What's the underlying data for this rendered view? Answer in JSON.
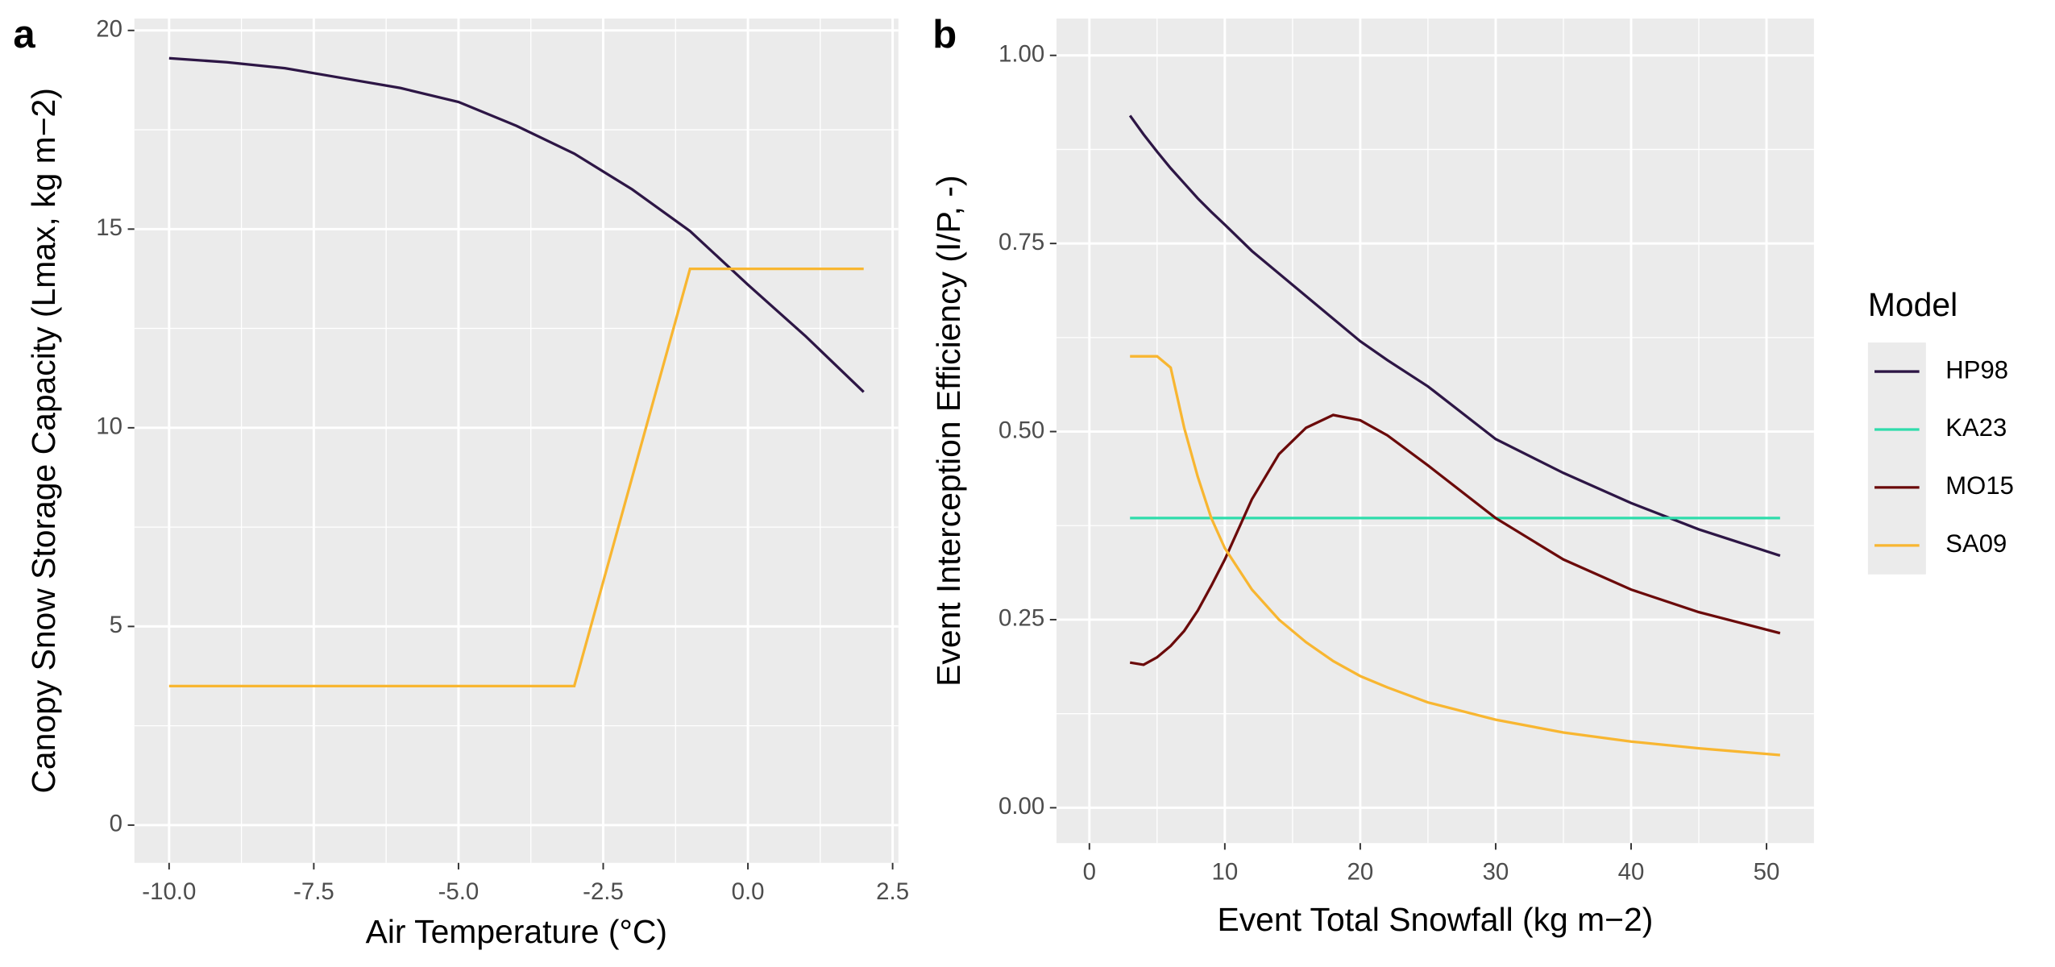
{
  "chart_data": [
    {
      "type": "line",
      "panel_label": "a",
      "x_label": "Air Temperature (°C)",
      "y_label": "Canopy Snow Storage Capacity (Lmax, kg m−2)",
      "x": [
        -10,
        -9,
        -8,
        -7,
        -6,
        -5,
        -4,
        -3,
        -2,
        -1,
        0,
        1,
        2
      ],
      "series": [
        {
          "color": "#2d1645",
          "values": [
            19.3,
            19.2,
            19.05,
            18.8,
            18.55,
            18.2,
            17.6,
            16.9,
            16.0,
            14.95,
            13.6,
            12.3,
            10.9
          ]
        },
        {
          "color": "#f8b631",
          "values": [
            3.5,
            3.5,
            3.5,
            3.5,
            3.5,
            3.5,
            3.5,
            3.5,
            8.75,
            14,
            14,
            14,
            14
          ]
        }
      ],
      "xlim": [
        -10.6,
        2.6
      ],
      "ylim": [
        -0.95,
        20.3
      ],
      "xticks": [
        {
          "value": -10,
          "label": "-10.0"
        },
        {
          "value": -7.5,
          "label": "-7.5"
        },
        {
          "value": -5,
          "label": "-5.0"
        },
        {
          "value": -2.5,
          "label": "-2.5"
        },
        {
          "value": 0,
          "label": "0.0"
        },
        2.5
      ],
      "yticks": [
        0,
        5,
        10,
        15,
        20
      ],
      "grid": true
    },
    {
      "type": "line",
      "panel_label": "b",
      "x_label": "Event Total Snowfall (kg m−2)",
      "y_label": "Event Interception Efficiency (I/P, -)",
      "legend_title": "Model",
      "x": [
        3,
        4,
        5,
        6,
        7,
        8,
        9,
        10,
        12,
        14,
        16,
        18,
        20,
        22,
        25,
        30,
        35,
        40,
        45,
        51
      ],
      "series": [
        {
          "name": "HP98",
          "color": "#2d1645",
          "values": [
            0.92,
            0.895,
            0.872,
            0.85,
            0.83,
            0.81,
            0.792,
            0.775,
            0.74,
            0.71,
            0.68,
            0.65,
            0.62,
            0.595,
            0.56,
            0.49,
            0.445,
            0.405,
            0.37,
            0.335
          ]
        },
        {
          "name": "KA23",
          "color": "#2fdcab",
          "values": [
            0.385,
            0.385,
            0.385,
            0.385,
            0.385,
            0.385,
            0.385,
            0.385,
            0.385,
            0.385,
            0.385,
            0.385,
            0.385,
            0.385,
            0.385,
            0.385,
            0.385,
            0.385,
            0.385,
            0.385
          ]
        },
        {
          "name": "MO15",
          "color": "#6b0a0a",
          "values": [
            0.193,
            0.19,
            0.2,
            0.215,
            0.235,
            0.262,
            0.295,
            0.33,
            0.41,
            0.47,
            0.505,
            0.522,
            0.515,
            0.495,
            0.455,
            0.385,
            0.33,
            0.29,
            0.26,
            0.232
          ]
        },
        {
          "name": "SA09",
          "color": "#f8b631",
          "values": [
            0.6,
            0.6,
            0.6,
            0.585,
            0.505,
            0.44,
            0.385,
            0.345,
            0.29,
            0.25,
            0.22,
            0.195,
            0.175,
            0.16,
            0.14,
            0.117,
            0.1,
            0.088,
            0.079,
            0.07
          ]
        }
      ],
      "xlim": [
        -2.43,
        53.5
      ],
      "ylim": [
        -0.047,
        1.049
      ],
      "xticks": [
        0,
        10,
        20,
        30,
        40,
        50
      ],
      "yticks": [
        {
          "value": 0,
          "label": "0.00"
        },
        {
          "value": 0.25,
          "label": "0.25"
        },
        {
          "value": 0.5,
          "label": "0.50"
        },
        {
          "value": 0.75,
          "label": "0.75"
        },
        {
          "value": 1,
          "label": "1.00"
        }
      ],
      "grid": true
    }
  ]
}
